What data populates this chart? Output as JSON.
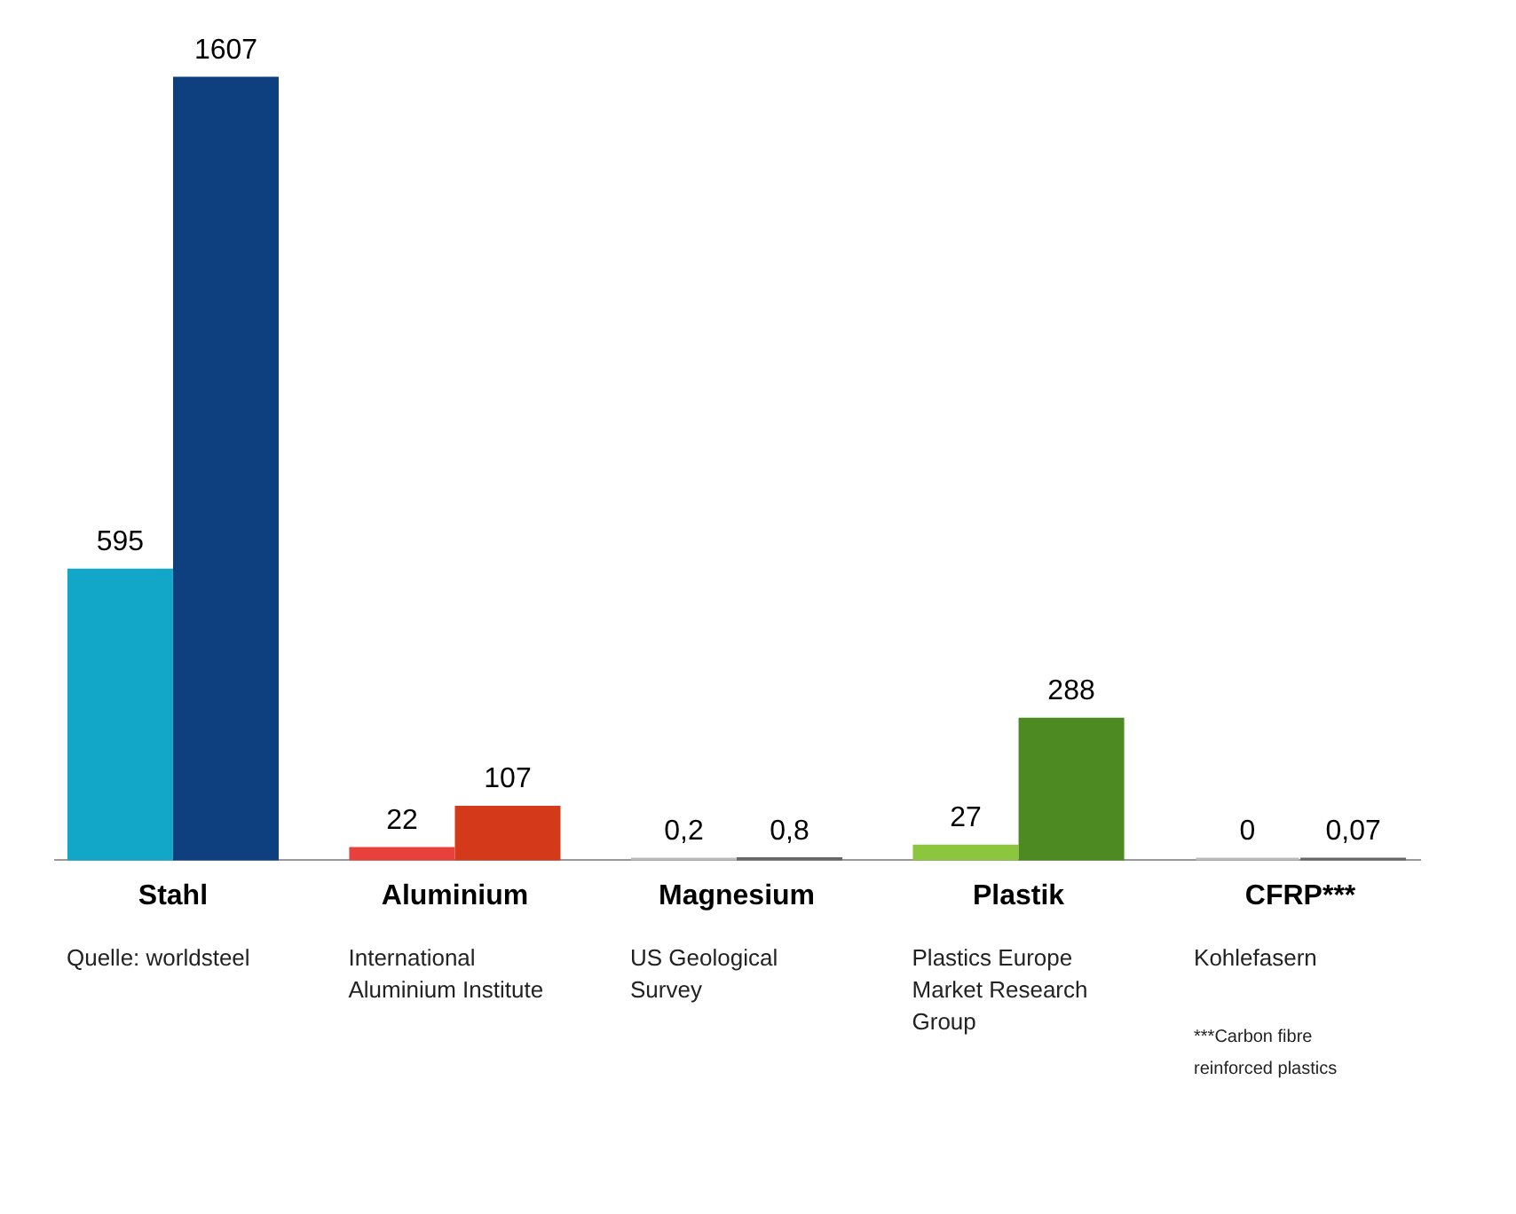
{
  "chart_data": {
    "type": "bar",
    "categories": [
      "Stahl",
      "Aluminium",
      "Magnesium",
      "Plastik",
      "CFRP***"
    ],
    "series": [
      {
        "colors": [
          "#12a7c9",
          "#e8413c",
          "#bbbbbb",
          "#8cc63e",
          "#bbbbbb"
        ],
        "values": [
          595,
          22,
          0.2,
          27,
          0
        ],
        "value_labels": [
          "595",
          "22",
          "0,2",
          "27",
          "0"
        ]
      },
      {
        "colors": [
          "#0e3f7e",
          "#d43a1a",
          "#666666",
          "#4e8a22",
          "#666666"
        ],
        "values": [
          1607,
          107,
          0.8,
          288,
          0.07
        ],
        "value_labels": [
          "1607",
          "107",
          "0,8",
          "288",
          "0,07"
        ]
      }
    ],
    "data_labels": true,
    "annotations": [
      "Quelle:  worldsteel",
      "International\nAluminium  Institute",
      "US Geological\nSurvey",
      "Plastics Europe\nMarket Research\nGroup",
      "Kohlefasern",
      "***Carbon  fibre\nreinforced plastics"
    ],
    "grid": false
  }
}
